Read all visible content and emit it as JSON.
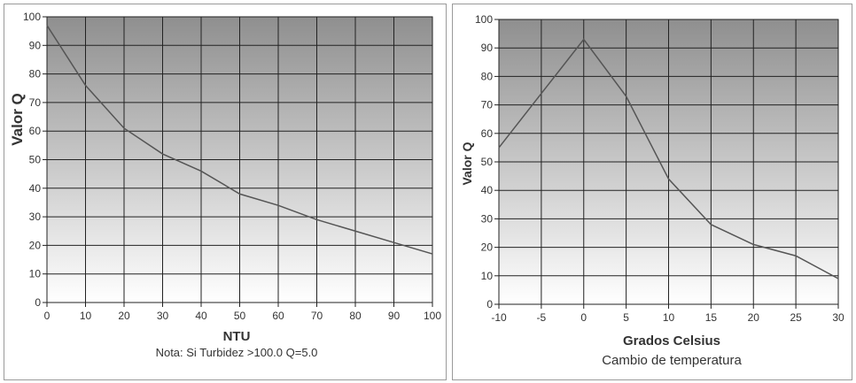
{
  "chart_data": [
    {
      "type": "line",
      "x": [
        0,
        10,
        20,
        30,
        40,
        50,
        60,
        70,
        80,
        90,
        100
      ],
      "series": [
        {
          "values": [
            97,
            76,
            61,
            52,
            46,
            38,
            34,
            29,
            25,
            21,
            17
          ]
        }
      ],
      "xlabel": "NTU",
      "ylabel": "Valor Q",
      "note": "Nota: Si Turbidez >100.0  Q=5.0",
      "xlim": [
        0,
        100
      ],
      "ylim": [
        0,
        100
      ],
      "xticks": [
        "0",
        "10",
        "20",
        "30",
        "40",
        "50",
        "60",
        "70",
        "80",
        "90",
        "100"
      ],
      "yticks": [
        "0",
        "10",
        "20",
        "30",
        "40",
        "50",
        "60",
        "70",
        "80",
        "90",
        "100"
      ],
      "grid": true,
      "line_color": "#555555"
    },
    {
      "type": "line",
      "x": [
        -10,
        -5,
        0,
        5,
        10,
        15,
        20,
        25,
        30
      ],
      "series": [
        {
          "values": [
            55,
            74,
            93,
            73,
            44,
            28,
            21,
            17,
            9
          ]
        }
      ],
      "xlabel": "Grados Celsius",
      "xlabel2": "Cambio de temperatura",
      "ylabel": "Valor Q",
      "xlim": [
        -10,
        30
      ],
      "ylim": [
        0,
        100
      ],
      "xticks": [
        "-10",
        "-5",
        "0",
        "5",
        "10",
        "15",
        "20",
        "25",
        "30"
      ],
      "yticks": [
        "0",
        "10",
        "20",
        "30",
        "40",
        "50",
        "60",
        "70",
        "80",
        "90",
        "100"
      ],
      "grid": true,
      "line_color": "#555555"
    }
  ]
}
